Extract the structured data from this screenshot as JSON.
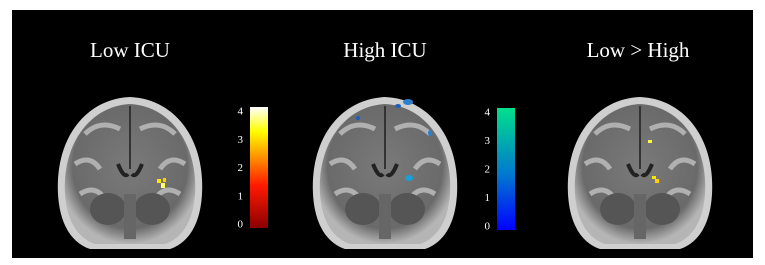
{
  "panels": [
    {
      "title": "Low ICU"
    },
    {
      "title": "High ICU"
    },
    {
      "title": "Low > High"
    }
  ],
  "colorbars": [
    {
      "ticks": [
        0,
        1,
        2,
        3,
        4
      ]
    },
    {
      "ticks": [
        0,
        1,
        2,
        3,
        4
      ]
    }
  ]
}
